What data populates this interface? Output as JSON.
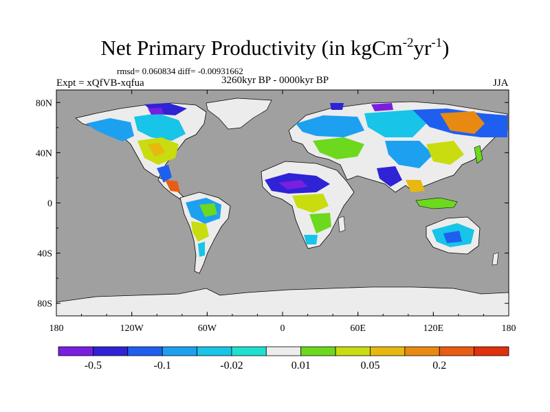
{
  "title": {
    "main": "Net Primary Productivity (in kgCm",
    "exp1": "-2",
    "mid": "yr",
    "exp2": "-1",
    "tail": ")"
  },
  "stats_text": "rmsd= 0.060834  diff= -0.00931662",
  "expt_text": "Expt = xQfVB-xqfua",
  "period_text": "3260kyr BP - 0000kyr BP",
  "season_text": "JJA",
  "y_axis_labels": [
    "80N",
    "40N",
    "0",
    "40S",
    "80S"
  ],
  "x_axis_labels": [
    "180",
    "120W",
    "60W",
    "0",
    "60E",
    "120E",
    "180"
  ],
  "colorbar": {
    "colors": [
      "#7a1ee0",
      "#2f23d6",
      "#1e5ff0",
      "#1ea0f0",
      "#18c4e8",
      "#1ee0d0",
      "#ececec",
      "#6cd81e",
      "#c8dc10",
      "#e8b810",
      "#e88a12",
      "#e85c14",
      "#e0300c"
    ],
    "labels": [
      "-0.5",
      "-0.1",
      "-0.02",
      "0.01",
      "0.05",
      "0.2"
    ]
  },
  "colors": {
    "ocean": "#a0a0a0",
    "no_change": "#ececec",
    "frame": "#000000"
  }
}
